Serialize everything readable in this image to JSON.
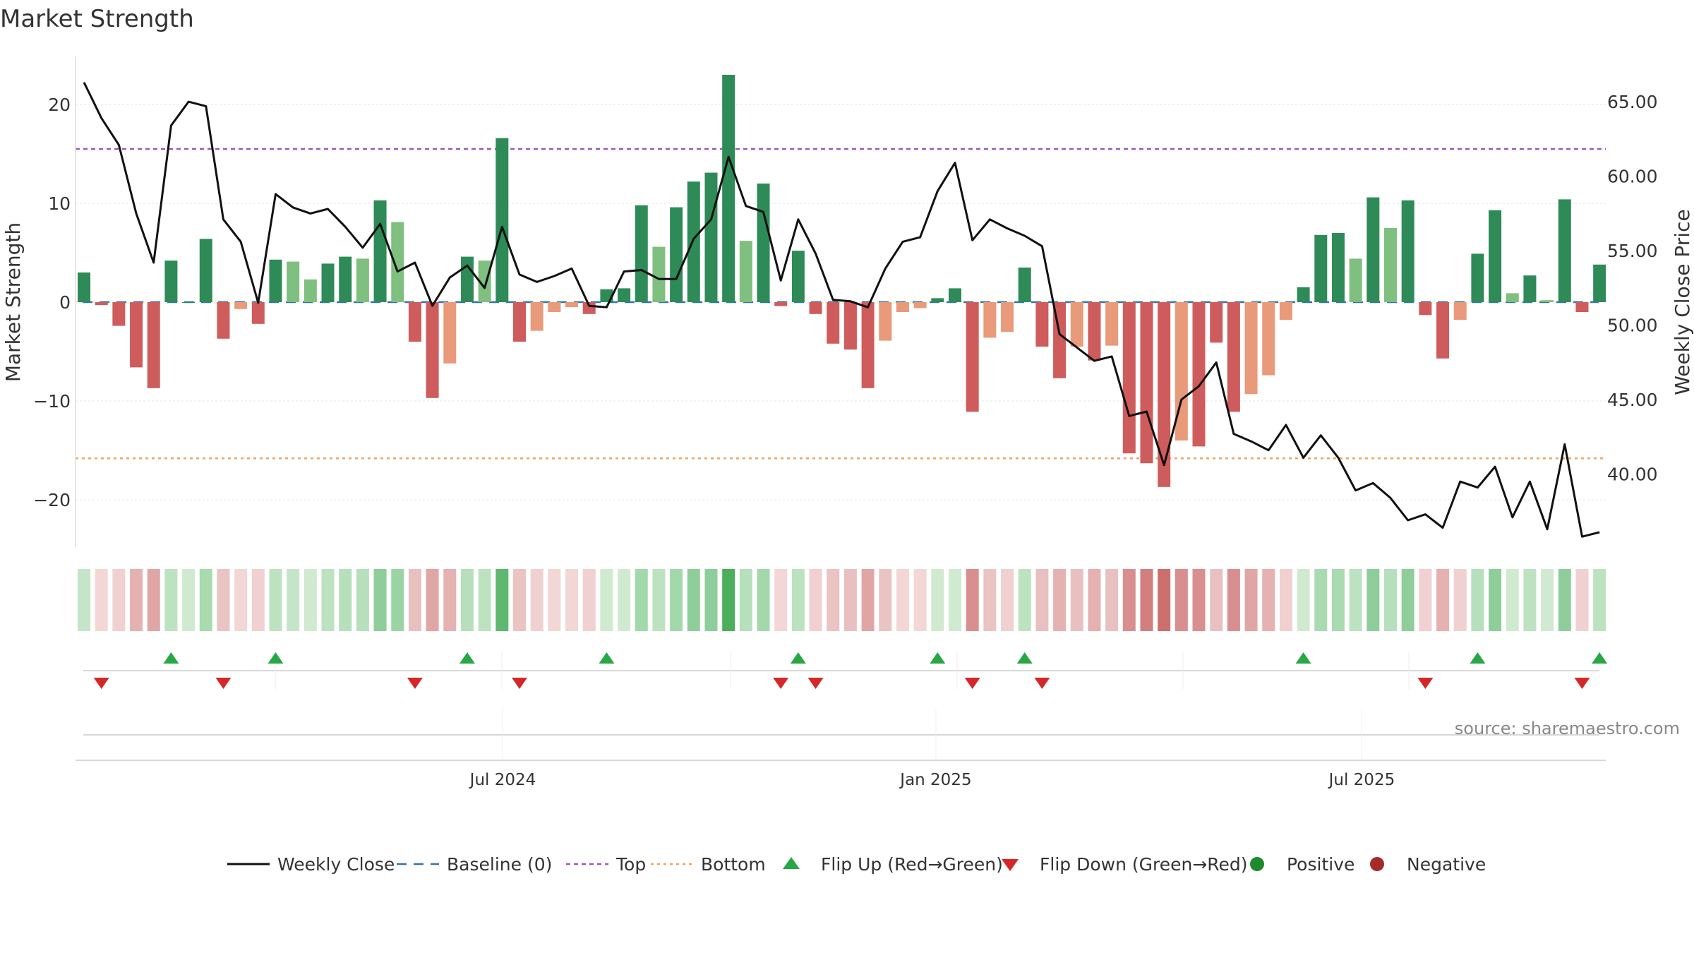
{
  "chart_data": {
    "type": "bar",
    "title": "Market Strength",
    "ylabel": "Market Strength",
    "y2label": "Weekly Close Price",
    "ylim": [
      -24.5,
      25.0
    ],
    "y2lim": [
      32.62,
      67.72
    ],
    "yticks": [
      20,
      10,
      0,
      -10,
      -20
    ],
    "yticklabels": [
      "20",
      "10",
      "0",
      "−10",
      "−20"
    ],
    "y2ticks": [
      65.0,
      60.0,
      55.0,
      50.0,
      45.0,
      40.0
    ],
    "y2ticklabels": [
      "65.00",
      "60.00",
      "55.00",
      "50.00",
      "45.00",
      "40.00"
    ],
    "x_axis": {
      "start": "2024-01-05",
      "end": "2025-10-10",
      "ticks": [
        {
          "date": "2024-07-01",
          "label": "Jul 2024"
        },
        {
          "date": "2025-01-01",
          "label": "Jan 2025"
        },
        {
          "date": "2025-07-01",
          "label": "Jul 2025"
        }
      ]
    },
    "reference_lines": {
      "baseline": 0,
      "top": 15.5,
      "bottom": -15.8
    },
    "series": [
      {
        "name": "Market Strength",
        "kind": "bar",
        "values": [
          3.0,
          -0.3,
          -2.4,
          -6.6,
          -8.7,
          4.2,
          0.0,
          6.4,
          -3.7,
          -0.7,
          -2.2,
          4.3,
          4.1,
          2.3,
          3.9,
          4.6,
          4.4,
          10.3,
          8.1,
          -4.0,
          -9.7,
          -6.2,
          4.6,
          4.2,
          16.6,
          -4.0,
          -2.9,
          -1.0,
          -0.5,
          -1.2,
          1.3,
          1.4,
          9.8,
          5.6,
          9.6,
          12.2,
          13.1,
          23.0,
          6.2,
          12.0,
          -0.4,
          5.2,
          -1.2,
          -4.2,
          -4.8,
          -8.7,
          -3.9,
          -1.0,
          -0.6,
          0.4,
          1.4,
          -11.1,
          -3.6,
          -3.0,
          3.5,
          -4.5,
          -7.7,
          -4.5,
          -5.9,
          -4.4,
          -15.3,
          -16.3,
          -18.7,
          -14.0,
          -14.6,
          -4.1,
          -11.1,
          -9.3,
          -7.4,
          -1.8,
          1.5,
          6.8,
          7.0,
          4.4,
          10.6,
          7.5,
          10.3,
          -1.3,
          -5.7,
          -1.8,
          4.9,
          9.3,
          0.9,
          2.7,
          0.2,
          10.4,
          -1.0,
          3.8
        ],
        "colors": [
          "#2e8b57",
          "#cf5c5c",
          "#cf5c5c",
          "#cf5c5c",
          "#cf5c5c",
          "#2e8b57",
          "#2e8b57",
          "#2e8b57",
          "#cf5c5c",
          "#e89a7a",
          "#cf5c5c",
          "#2e8b57",
          "#7fbf7f",
          "#7fbf7f",
          "#2e8b57",
          "#2e8b57",
          "#7fbf7f",
          "#2e8b57",
          "#7fbf7f",
          "#cf5c5c",
          "#cf5c5c",
          "#e89a7a",
          "#2e8b57",
          "#7fbf7f",
          "#2e8b57",
          "#cf5c5c",
          "#e89a7a",
          "#e89a7a",
          "#e89a7a",
          "#cf5c5c",
          "#2e8b57",
          "#2e8b57",
          "#2e8b57",
          "#7fbf7f",
          "#2e8b57",
          "#2e8b57",
          "#2e8b57",
          "#2e8b57",
          "#7fbf7f",
          "#2e8b57",
          "#cf5c5c",
          "#2e8b57",
          "#cf5c5c",
          "#cf5c5c",
          "#cf5c5c",
          "#cf5c5c",
          "#e89a7a",
          "#e89a7a",
          "#e89a7a",
          "#2e8b57",
          "#2e8b57",
          "#cf5c5c",
          "#e89a7a",
          "#e89a7a",
          "#2e8b57",
          "#cf5c5c",
          "#cf5c5c",
          "#e89a7a",
          "#cf5c5c",
          "#e89a7a",
          "#cf5c5c",
          "#cf5c5c",
          "#cf5c5c",
          "#e89a7a",
          "#cf5c5c",
          "#cf5c5c",
          "#cf5c5c",
          "#e89a7a",
          "#e89a7a",
          "#e89a7a",
          "#2e8b57",
          "#2e8b57",
          "#2e8b57",
          "#7fbf7f",
          "#2e8b57",
          "#7fbf7f",
          "#2e8b57",
          "#cf5c5c",
          "#cf5c5c",
          "#e89a7a",
          "#2e8b57",
          "#2e8b57",
          "#7fbf7f",
          "#2e8b57",
          "#7fbf7f",
          "#2e8b57",
          "#cf5c5c",
          "#2e8b57"
        ]
      },
      {
        "name": "Weekly Close",
        "kind": "line",
        "color": "#111111",
        "values": [
          66.3,
          63.9,
          62.1,
          57.5,
          54.2,
          63.4,
          65.0,
          64.7,
          57.1,
          55.6,
          51.5,
          58.8,
          57.9,
          57.5,
          57.8,
          56.6,
          55.2,
          56.8,
          53.6,
          54.2,
          51.3,
          53.2,
          54.0,
          52.5,
          56.6,
          53.4,
          52.9,
          53.3,
          53.8,
          51.3,
          51.2,
          53.6,
          53.7,
          53.1,
          53.1,
          55.8,
          57.1,
          61.3,
          58.0,
          57.6,
          53.0,
          57.1,
          54.8,
          51.7,
          51.6,
          51.2,
          53.8,
          55.6,
          55.9,
          59.0,
          60.9,
          55.7,
          57.1,
          56.5,
          56.0,
          55.3,
          49.4,
          48.5,
          47.6,
          47.9,
          43.9,
          44.2,
          40.6,
          45.0,
          45.9,
          47.5,
          42.7,
          42.2,
          41.6,
          43.3,
          41.1,
          42.6,
          41.1,
          38.9,
          39.4,
          38.4,
          36.9,
          37.3,
          36.4,
          39.5,
          39.1,
          40.5,
          37.1,
          39.5,
          36.3,
          42.0,
          35.8,
          36.1
        ]
      }
    ],
    "strip_colors": [
      "#c4e5c7",
      "#f3d6d6",
      "#f0d0d0",
      "#e5b1b1",
      "#e0a6a6",
      "#bde2c0",
      "#cfeacf",
      "#a9dab0",
      "#eac3c3",
      "#f3d6d6",
      "#f0d0d0",
      "#bde2c0",
      "#c4e5c7",
      "#cfeacf",
      "#bde2c0",
      "#b6dfbb",
      "#b6dfbb",
      "#8fce9a",
      "#9bd4a4",
      "#e9c0c0",
      "#e0a6a6",
      "#e5b1b1",
      "#b6dfbb",
      "#bde2c0",
      "#5fb86f",
      "#eac3c3",
      "#f0d0d0",
      "#f3d6d6",
      "#f3d6d6",
      "#f0d0d0",
      "#cfeacf",
      "#cfeacf",
      "#a3d8ab",
      "#bde2c0",
      "#a3d8ab",
      "#8fce9a",
      "#8fce9a",
      "#4caf5b",
      "#b6dfbb",
      "#a3d8ab",
      "#f3d6d6",
      "#bde2c0",
      "#f0d0d0",
      "#eac3c3",
      "#e9c0c0",
      "#e0a6a6",
      "#eac3c3",
      "#f3d6d6",
      "#f3d6d6",
      "#cfeacf",
      "#cfeacf",
      "#d98f8f",
      "#eac3c3",
      "#f0d0d0",
      "#bde2c0",
      "#e9c0c0",
      "#e5b1b1",
      "#e9c0c0",
      "#e5b1b1",
      "#e9c0c0",
      "#d98f8f",
      "#d37f7f",
      "#cc6f6f",
      "#d98f8f",
      "#d98f8f",
      "#e9c0c0",
      "#d98f8f",
      "#e0a6a6",
      "#e5b1b1",
      "#f0d0d0",
      "#cfeacf",
      "#a9dab0",
      "#a9dab0",
      "#bde2c0",
      "#8fce9a",
      "#b6dfbb",
      "#8fce9a",
      "#f0d0d0",
      "#e5b1b1",
      "#f0d0d0",
      "#b6dfbb",
      "#8fce9a",
      "#cfeacf",
      "#bde2c0",
      "#cfeacf",
      "#8fce9a",
      "#f0d0d0",
      "#bde2c0"
    ],
    "flip_up_indices": [
      5,
      11,
      22,
      30,
      41,
      49,
      54,
      70,
      80,
      87
    ],
    "flip_down_indices": [
      1,
      8,
      19,
      25,
      40,
      42,
      51,
      55,
      77,
      86
    ],
    "colors": {
      "green_strong": "#2e8b57",
      "green_light": "#7fbf7f",
      "red_strong": "#cf5c5c",
      "red_light": "#e89a7a",
      "top_line": "#9b59b6",
      "bottom_line": "#f0a35c",
      "baseline": "#3274a1",
      "flip_up": "#28a745",
      "flip_down": "#d62728",
      "positive": "#1e8a2e",
      "negative": "#a52a2a"
    },
    "grid": true,
    "legend": {
      "placement": "bottom-center",
      "items": [
        {
          "label": "Weekly Close",
          "symbol": "line"
        },
        {
          "label": "Baseline (0)",
          "symbol": "dash"
        },
        {
          "label": "Top",
          "symbol": "dot-line"
        },
        {
          "label": "Bottom",
          "symbol": "dot-line-orange"
        },
        {
          "label": "Flip Up (Red→Green)",
          "symbol": "triangle-up"
        },
        {
          "label": "Flip Down (Green→Red)",
          "symbol": "triangle-down"
        },
        {
          "label": "Positive",
          "symbol": "circle-green"
        },
        {
          "label": "Negative",
          "symbol": "circle-red"
        }
      ]
    },
    "annotation": "source: sharemaestro.com"
  }
}
